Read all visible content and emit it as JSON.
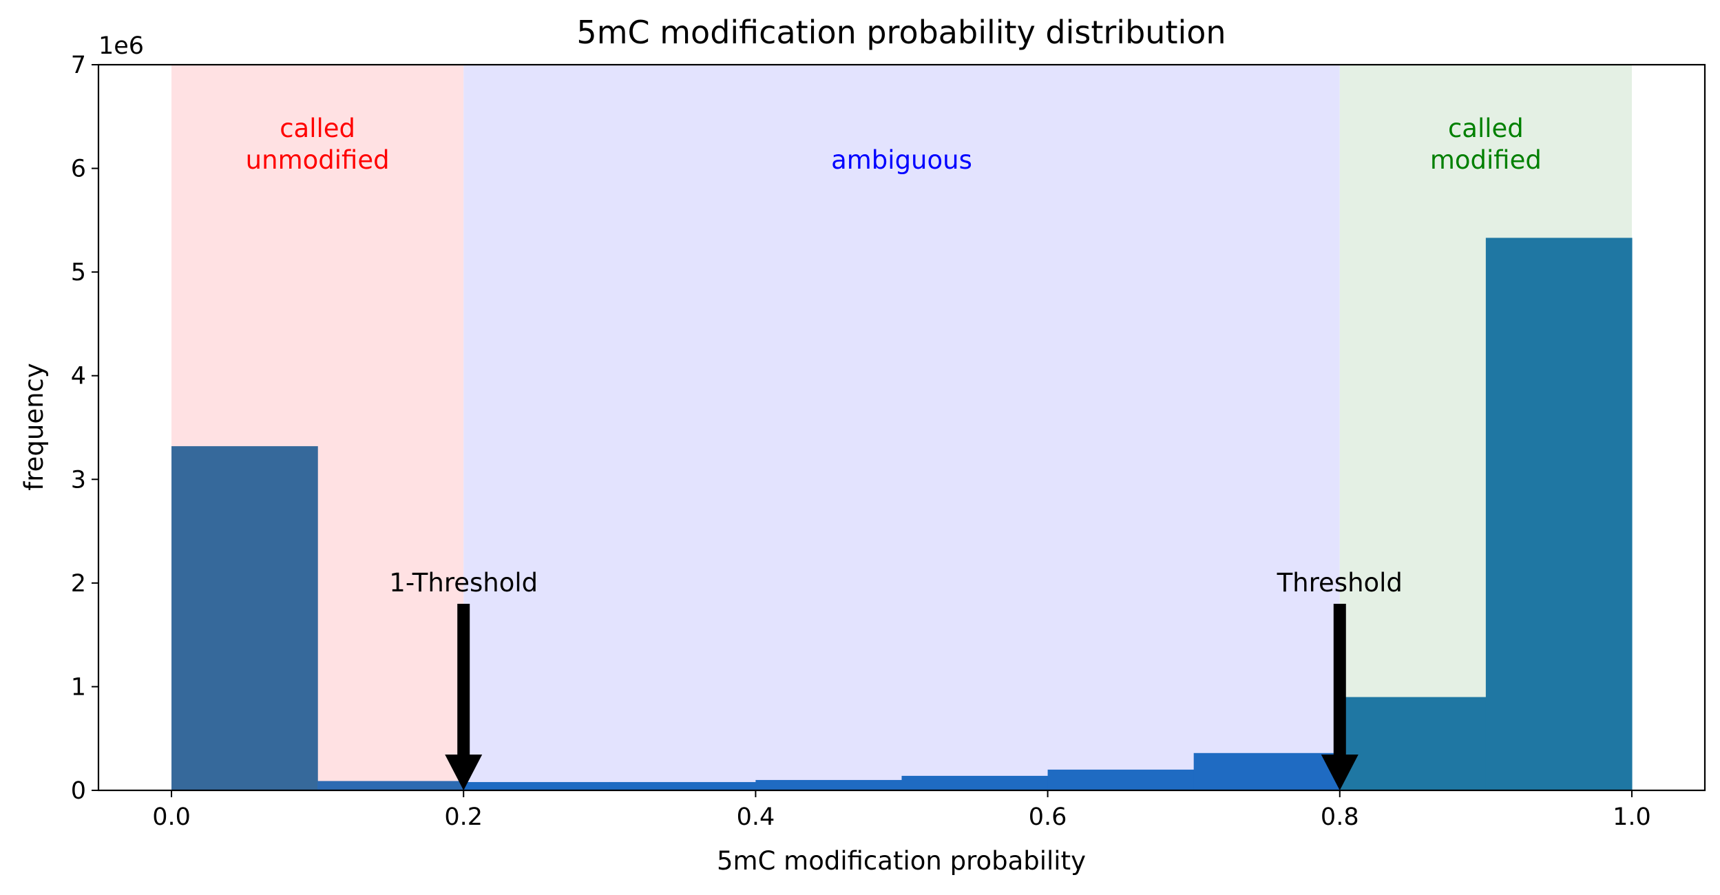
{
  "chart_data": {
    "type": "bar",
    "title": "5mC modification probability distribution",
    "xlabel": "5mC modification probability",
    "ylabel": "frequency",
    "y_offset_label": "1e6",
    "xlim": [
      -0.05,
      1.05
    ],
    "ylim": [
      0,
      7
    ],
    "y_scale": 1000000,
    "xticks": [
      {
        "value": 0.0,
        "label": "0.0"
      },
      {
        "value": 0.2,
        "label": "0.2"
      },
      {
        "value": 0.4,
        "label": "0.4"
      },
      {
        "value": 0.6,
        "label": "0.6"
      },
      {
        "value": 0.8,
        "label": "0.8"
      },
      {
        "value": 1.0,
        "label": "1.0"
      }
    ],
    "yticks": [
      {
        "value": 0,
        "label": "0"
      },
      {
        "value": 1,
        "label": "1"
      },
      {
        "value": 2,
        "label": "2"
      },
      {
        "value": 3,
        "label": "3"
      },
      {
        "value": 4,
        "label": "4"
      },
      {
        "value": 5,
        "label": "5"
      },
      {
        "value": 6,
        "label": "6"
      },
      {
        "value": 7,
        "label": "7"
      }
    ],
    "bins": [
      {
        "x0": 0.0,
        "x1": 0.1,
        "value": 3.32,
        "color": "#36699b"
      },
      {
        "x0": 0.1,
        "x1": 0.2,
        "value": 0.09,
        "color": "#2c6ab2"
      },
      {
        "x0": 0.2,
        "x1": 0.3,
        "value": 0.08,
        "color": "#1f6bc2"
      },
      {
        "x0": 0.3,
        "x1": 0.4,
        "value": 0.08,
        "color": "#1f6bc2"
      },
      {
        "x0": 0.4,
        "x1": 0.5,
        "value": 0.1,
        "color": "#1f6bc2"
      },
      {
        "x0": 0.5,
        "x1": 0.6,
        "value": 0.14,
        "color": "#1f6bc2"
      },
      {
        "x0": 0.6,
        "x1": 0.7,
        "value": 0.2,
        "color": "#1f6bc2"
      },
      {
        "x0": 0.7,
        "x1": 0.8,
        "value": 0.36,
        "color": "#1f6bc2"
      },
      {
        "x0": 0.8,
        "x1": 0.9,
        "value": 0.9,
        "color": "#1f77a3"
      },
      {
        "x0": 0.9,
        "x1": 1.0,
        "value": 5.33,
        "color": "#1f77a3"
      }
    ],
    "regions": [
      {
        "x0": 0.0,
        "x1": 0.2,
        "color": "#ffe1e3",
        "label_lines": [
          "called",
          "unmodified"
        ],
        "label_color": "#ff0000"
      },
      {
        "x0": 0.2,
        "x1": 0.8,
        "color": "#e3e3fe",
        "label_lines": [
          "ambiguous"
        ],
        "label_color": "#0000ff"
      },
      {
        "x0": 0.8,
        "x1": 1.0,
        "color": "#e4f0e4",
        "label_lines": [
          "called",
          "modified"
        ],
        "label_color": "#008000"
      }
    ],
    "annotations": [
      {
        "text": "1-Threshold",
        "x": 0.2,
        "text_y": 2.0,
        "arrow_from": 1.8,
        "arrow_to": 0.0
      },
      {
        "text": "Threshold",
        "x": 0.8,
        "text_y": 2.0,
        "arrow_from": 1.8,
        "arrow_to": 0.0
      }
    ],
    "grid": false,
    "legend": "none"
  }
}
